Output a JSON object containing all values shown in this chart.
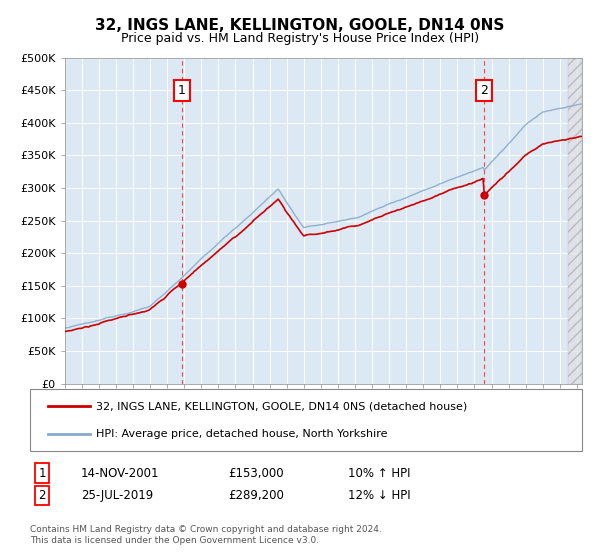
{
  "title": "32, INGS LANE, KELLINGTON, GOOLE, DN14 0NS",
  "subtitle": "Price paid vs. HM Land Registry's House Price Index (HPI)",
  "ylim": [
    0,
    500000
  ],
  "yticks": [
    0,
    50000,
    100000,
    150000,
    200000,
    250000,
    300000,
    350000,
    400000,
    450000,
    500000
  ],
  "ytick_labels": [
    "£0",
    "£50K",
    "£100K",
    "£150K",
    "£200K",
    "£250K",
    "£300K",
    "£350K",
    "£400K",
    "£450K",
    "£500K"
  ],
  "xlim_start": 1995.0,
  "xlim_end": 2025.3,
  "background_color": "#ffffff",
  "plot_bg_color": "#dce9f5",
  "grid_color": "#ffffff",
  "ann1_x": 2001.87,
  "ann2_x": 2019.56,
  "ann1_date": "14-NOV-2001",
  "ann1_price": "£153,000",
  "ann1_hpi": "10% ↑ HPI",
  "ann2_date": "25-JUL-2019",
  "ann2_price": "£289,200",
  "ann2_hpi": "12% ↓ HPI",
  "legend_line1": "32, INGS LANE, KELLINGTON, GOOLE, DN14 0NS (detached house)",
  "legend_line2": "HPI: Average price, detached house, North Yorkshire",
  "footer": "Contains HM Land Registry data © Crown copyright and database right 2024.\nThis data is licensed under the Open Government Licence v3.0.",
  "red_color": "#cc0000",
  "blue_color": "#88aacc",
  "hatch_start": 2024.5
}
